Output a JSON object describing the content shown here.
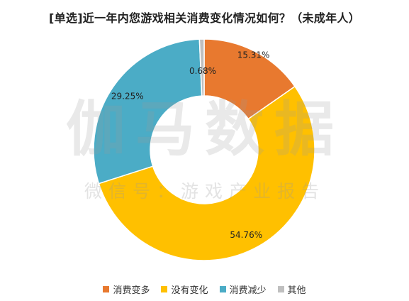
{
  "chart_data": {
    "type": "pie",
    "title": "[单选]近一年内您游戏相关消费变化情况如何？（未成年人）",
    "donut": true,
    "legend_position": "bottom",
    "categories": [
      "消费变多",
      "没有变化",
      "消费减少",
      "其他"
    ],
    "values": [
      15.31,
      54.76,
      29.25,
      0.68
    ],
    "data_labels": [
      "15.31%",
      "54.76%",
      "29.25%",
      "0.68%"
    ],
    "colors": [
      "#E8792F",
      "#FFC000",
      "#4BACC6",
      "#BFBFBF"
    ]
  },
  "watermark": {
    "main": "伽马数据",
    "sub": "微信号：游戏产业报告"
  }
}
